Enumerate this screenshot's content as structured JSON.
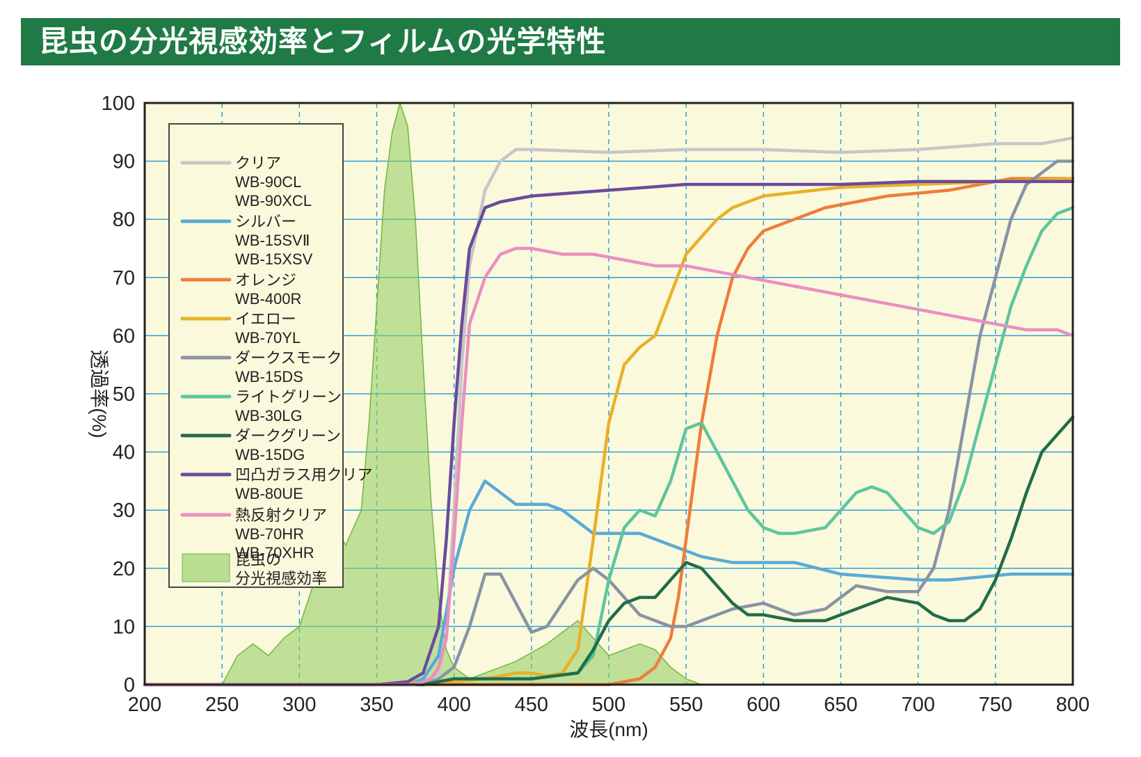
{
  "page": {
    "title": "昆虫の分光視感効率とフィルムの光学特性",
    "banner_color": "#1f7a45"
  },
  "chart_data": {
    "type": "line",
    "title": "",
    "xlabel": "波長(nm)",
    "ylabel": "透過率(%)",
    "xlim": [
      200,
      800
    ],
    "ylim": [
      0,
      100
    ],
    "xticks": [
      200,
      250,
      300,
      350,
      400,
      450,
      500,
      550,
      600,
      650,
      700,
      750,
      800
    ],
    "yticks": [
      0,
      10,
      20,
      30,
      40,
      50,
      60,
      70,
      80,
      90,
      100
    ],
    "plot_background": "#fbf9dc",
    "grid": {
      "horizontal": "solid",
      "vertical": "dashed",
      "color": "#2f9fd8"
    },
    "legend_position": "upper-left",
    "area": {
      "name": "昆虫の分光視感効率",
      "legend_lines": [
        "昆虫の",
        "分光視感効率"
      ],
      "color": "#8fcc5f",
      "x": [
        200,
        250,
        260,
        270,
        280,
        290,
        300,
        310,
        320,
        330,
        340,
        345,
        350,
        355,
        360,
        365,
        370,
        375,
        380,
        385,
        390,
        395,
        400,
        410,
        420,
        440,
        460,
        480,
        490,
        500,
        510,
        520,
        530,
        540,
        550,
        560
      ],
      "y": [
        0,
        0,
        5,
        7,
        5,
        8,
        10,
        18,
        28,
        24,
        30,
        45,
        65,
        85,
        95,
        100,
        96,
        80,
        55,
        32,
        15,
        6,
        3,
        1,
        2,
        4,
        7,
        11,
        8,
        5,
        6,
        7,
        6,
        3,
        1,
        0
      ]
    },
    "series": [
      {
        "legend": [
          "クリア",
          "WB-90CL",
          "WB-90XCL"
        ],
        "color": "#c6c6c6",
        "x": [
          200,
          370,
          380,
          390,
          395,
          400,
          405,
          410,
          420,
          430,
          440,
          450,
          500,
          550,
          600,
          650,
          700,
          750,
          780,
          800
        ],
        "y": [
          0,
          0,
          0.5,
          2,
          8,
          30,
          55,
          72,
          85,
          90,
          92,
          92,
          91.5,
          92,
          92,
          91.5,
          92,
          93,
          93,
          94
        ]
      },
      {
        "legend": [
          "シルバー",
          "WB-15SVⅡ",
          "WB-15XSV"
        ],
        "color": "#5aaad6",
        "x": [
          200,
          370,
          380,
          390,
          400,
          410,
          420,
          430,
          440,
          450,
          460,
          470,
          480,
          490,
          500,
          520,
          540,
          560,
          580,
          600,
          620,
          650,
          700,
          720,
          740,
          760,
          780,
          800
        ],
        "y": [
          0,
          0,
          1,
          5,
          20,
          30,
          35,
          33,
          31,
          31,
          31,
          30,
          28,
          26,
          26,
          26,
          24,
          22,
          21,
          21,
          21,
          19,
          18,
          18,
          18.5,
          19,
          19,
          19
        ]
      },
      {
        "legend": [
          "オレンジ",
          "WB-400R"
        ],
        "color": "#ee7d3b",
        "x": [
          200,
          450,
          500,
          520,
          530,
          540,
          545,
          550,
          555,
          560,
          570,
          580,
          590,
          600,
          610,
          620,
          640,
          660,
          680,
          700,
          720,
          740,
          760,
          780,
          800
        ],
        "y": [
          0,
          0,
          0,
          1,
          3,
          8,
          15,
          25,
          35,
          45,
          60,
          70,
          75,
          78,
          79,
          80,
          82,
          83,
          84,
          84.5,
          85,
          86,
          87,
          87,
          87
        ]
      },
      {
        "legend": [
          "イエロー",
          "WB-70YL"
        ],
        "color": "#e8b02a",
        "x": [
          200,
          350,
          400,
          420,
          440,
          450,
          460,
          470,
          480,
          490,
          500,
          510,
          520,
          530,
          540,
          550,
          560,
          570,
          580,
          590,
          600,
          650,
          700,
          750,
          800
        ],
        "y": [
          0,
          0,
          0.5,
          1,
          2,
          2,
          1.5,
          2,
          6,
          25,
          45,
          55,
          58,
          60,
          67,
          74,
          77,
          80,
          82,
          83,
          84,
          85.5,
          86,
          86.5,
          87
        ]
      },
      {
        "legend": [
          "ダークスモーク",
          "WB-15DS"
        ],
        "color": "#8893a6",
        "x": [
          200,
          350,
          380,
          390,
          400,
          410,
          420,
          430,
          440,
          450,
          460,
          470,
          480,
          490,
          500,
          510,
          520,
          530,
          540,
          550,
          560,
          580,
          600,
          620,
          640,
          660,
          680,
          700,
          710,
          720,
          730,
          740,
          750,
          760,
          770,
          780,
          790,
          800
        ],
        "y": [
          0,
          0,
          0,
          1,
          3,
          10,
          19,
          19,
          14,
          9,
          10,
          14,
          18,
          20,
          18,
          15,
          12,
          11,
          10,
          10,
          11,
          13,
          14,
          12,
          13,
          17,
          16,
          16,
          20,
          30,
          45,
          60,
          70,
          80,
          86,
          88,
          90,
          90
        ]
      },
      {
        "legend": [
          "ライトグリーン",
          "WB-30LG"
        ],
        "color": "#5ec59e",
        "x": [
          200,
          380,
          400,
          450,
          480,
          490,
          500,
          510,
          520,
          530,
          540,
          550,
          560,
          570,
          580,
          590,
          600,
          610,
          620,
          640,
          650,
          660,
          670,
          680,
          690,
          700,
          710,
          720,
          730,
          740,
          750,
          760,
          770,
          780,
          790,
          800
        ],
        "y": [
          0,
          0,
          1,
          1,
          2,
          5,
          18,
          27,
          30,
          29,
          35,
          44,
          45,
          40,
          35,
          30,
          27,
          26,
          26,
          27,
          30,
          33,
          34,
          33,
          30,
          27,
          26,
          28,
          35,
          45,
          55,
          65,
          72,
          78,
          81,
          82
        ]
      },
      {
        "legend": [
          "ダークグリーン",
          "WB-15DG"
        ],
        "color": "#226c4a",
        "x": [
          200,
          380,
          400,
          450,
          480,
          490,
          500,
          510,
          520,
          530,
          540,
          550,
          560,
          570,
          580,
          590,
          600,
          620,
          640,
          660,
          680,
          700,
          710,
          720,
          730,
          740,
          750,
          760,
          770,
          780,
          790,
          800
        ],
        "y": [
          0,
          0,
          1,
          1,
          2,
          6,
          11,
          14,
          15,
          15,
          18,
          21,
          20,
          17,
          14,
          12,
          12,
          11,
          11,
          13,
          15,
          14,
          12,
          11,
          11,
          13,
          18,
          25,
          33,
          40,
          43,
          46
        ]
      },
      {
        "legend": [
          "凹凸ガラス用クリア",
          "WB-80UE"
        ],
        "color": "#6a4b9c",
        "x": [
          200,
          350,
          370,
          380,
          390,
          395,
          400,
          405,
          410,
          420,
          430,
          450,
          500,
          550,
          600,
          650,
          700,
          750,
          800
        ],
        "y": [
          0,
          0,
          0.5,
          2,
          10,
          25,
          45,
          62,
          75,
          82,
          83,
          84,
          85,
          86,
          86,
          86,
          86.5,
          86.5,
          86.5
        ]
      },
      {
        "legend": [
          "熱反射クリア",
          "WB-70HR",
          "WB-70XHR"
        ],
        "color": "#ea8fc0",
        "x": [
          200,
          375,
          385,
          390,
          395,
          400,
          405,
          410,
          420,
          430,
          440,
          450,
          470,
          490,
          510,
          530,
          550,
          570,
          590,
          610,
          630,
          650,
          670,
          690,
          710,
          730,
          750,
          770,
          790,
          800
        ],
        "y": [
          0,
          0,
          1,
          3,
          8,
          25,
          45,
          62,
          70,
          74,
          75,
          75,
          74,
          74,
          73,
          72,
          72,
          71,
          70,
          69,
          68,
          67,
          66,
          65,
          64,
          63,
          62,
          61,
          61,
          60
        ]
      }
    ]
  }
}
